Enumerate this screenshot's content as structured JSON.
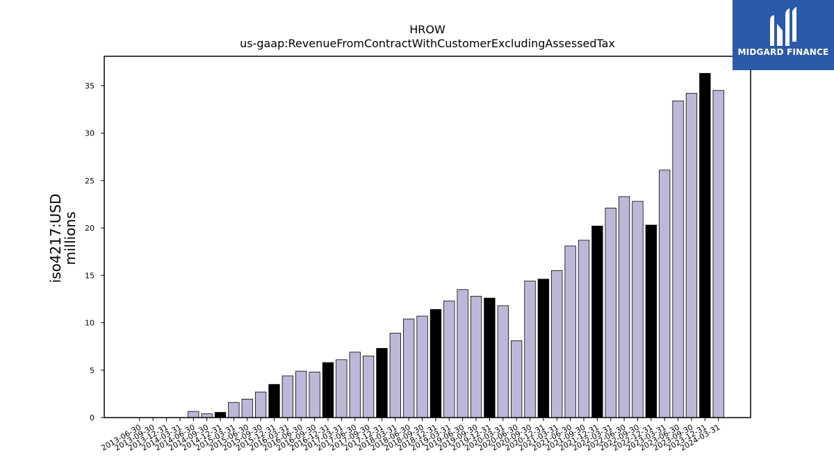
{
  "logo": {
    "text": "MIDGARD FINANCE",
    "background": "#2d5aa8"
  },
  "chart_data": {
    "type": "bar",
    "title": "HROW",
    "subtitle": "us-gaap:RevenueFromContractWithCustomerExcludingAssessedTax",
    "ylabel_line1": "iso4217:USD",
    "ylabel_line2": "millions",
    "xlabel": "",
    "ylim": [
      0,
      38.1
    ],
    "yticks": [
      0,
      5,
      10,
      15,
      20,
      25,
      30,
      35
    ],
    "grid": false,
    "colors": {
      "quarter": "#bcb8d8",
      "annual": "#000000",
      "edge": "#000000"
    },
    "categories": [
      "2013-06-30",
      "2013-09-30",
      "2013-12-31",
      "2014-03-31",
      "2014-06-30",
      "2014-09-30",
      "2014-12-31",
      "2015-03-31",
      "2015-06-30",
      "2015-09-30",
      "2015-12-31",
      "2016-03-31",
      "2016-06-30",
      "2016-09-30",
      "2016-12-31",
      "2017-03-31",
      "2017-06-30",
      "2017-09-30",
      "2017-12-31",
      "2018-03-31",
      "2018-06-30",
      "2018-09-30",
      "2018-12-31",
      "2019-03-31",
      "2019-06-30",
      "2019-09-30",
      "2019-12-31",
      "2020-03-31",
      "2020-06-30",
      "2020-09-30",
      "2020-12-31",
      "2021-03-31",
      "2021-06-30",
      "2021-09-30",
      "2021-12-31",
      "2022-03-31",
      "2022-06-30",
      "2022-09-30",
      "2022-12-31",
      "2023-03-31",
      "2023-06-30",
      "2023-09-30",
      "2023-12-31",
      "2024-03-31"
    ],
    "values": [
      0,
      0,
      0,
      0,
      0.65,
      0.4,
      0.55,
      1.6,
      1.95,
      2.7,
      3.5,
      4.4,
      4.9,
      4.8,
      5.8,
      6.1,
      6.9,
      6.5,
      7.3,
      8.9,
      10.4,
      10.7,
      11.4,
      12.3,
      13.5,
      12.8,
      12.6,
      11.8,
      8.1,
      14.4,
      14.6,
      15.5,
      18.1,
      18.7,
      20.2,
      22.1,
      23.3,
      22.8,
      20.3,
      26.1,
      33.4,
      34.2,
      36.3,
      34.5
    ],
    "annual": [
      false,
      false,
      false,
      false,
      false,
      false,
      true,
      false,
      false,
      false,
      true,
      false,
      false,
      false,
      true,
      false,
      false,
      false,
      true,
      false,
      false,
      false,
      true,
      false,
      false,
      false,
      true,
      false,
      false,
      false,
      true,
      false,
      false,
      false,
      true,
      false,
      false,
      false,
      true,
      false,
      false,
      false,
      true,
      false
    ]
  }
}
